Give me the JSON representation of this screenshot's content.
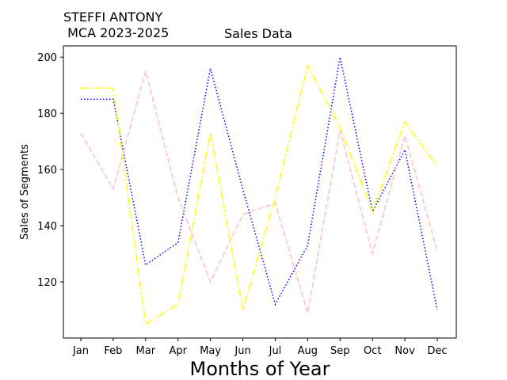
{
  "header": {
    "author_line1": "STEFFI ANTONY",
    "author_line2": " MCA 2023-2025"
  },
  "chart_data": {
    "type": "line",
    "title": "Sales Data",
    "xlabel": "Months of Year",
    "ylabel": "Sales of Segments",
    "categories": [
      "Jan",
      "Feb",
      "Mar",
      "Apr",
      "May",
      "Jun",
      "Jul",
      "Aug",
      "Sep",
      "Oct",
      "Nov",
      "Dec"
    ],
    "ylim": [
      100,
      204
    ],
    "yticks": [
      120,
      140,
      160,
      180,
      200
    ],
    "grid": false,
    "legend": "none",
    "series": [
      {
        "color": "#0000ff",
        "linestyle": "dotted",
        "values": [
          185,
          185,
          126,
          134,
          196,
          153,
          112,
          133,
          200,
          145,
          167,
          110
        ]
      },
      {
        "color": "#ffc0cb",
        "linestyle": "dashed",
        "values": [
          173,
          153,
          195,
          150,
          120,
          144,
          148,
          109,
          174,
          130,
          172,
          131
        ]
      },
      {
        "color": "#ffff00",
        "linestyle": "dashdot",
        "values": [
          189,
          189,
          105,
          112,
          173,
          110,
          150,
          197,
          175,
          145,
          177,
          161
        ]
      }
    ]
  }
}
